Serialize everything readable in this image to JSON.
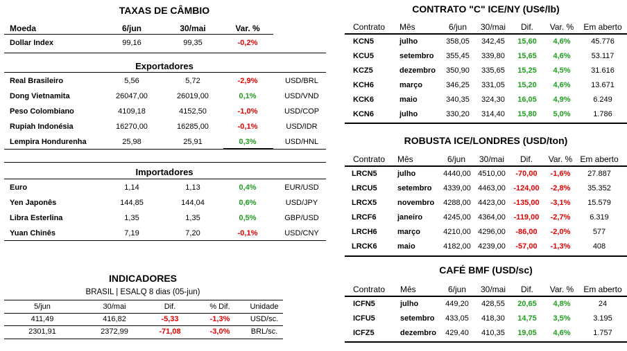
{
  "cambio": {
    "title": "TAXAS DE CÂMBIO",
    "headers": [
      "Moeda",
      "6/jun",
      "30/mai",
      "Var. %"
    ],
    "dollar_index": {
      "name": "Dollar Index",
      "v1": "99,16",
      "v2": "99,35",
      "var": "-0,2%"
    },
    "exportadores_title": "Exportadores",
    "exportadores": [
      {
        "name": "Real Brasileiro",
        "v1": "5,56",
        "v2": "5,72",
        "var": "-2,9%",
        "pair": "USD/BRL"
      },
      {
        "name": "Dong Vietnamita",
        "v1": "26047,00",
        "v2": "26019,00",
        "var": "0,1%",
        "pair": "USD/VND"
      },
      {
        "name": "Peso Colombiano",
        "v1": "4109,18",
        "v2": "4152,50",
        "var": "-1,0%",
        "pair": "USD/COP"
      },
      {
        "name": "Rupiah Indonésia",
        "v1": "16270,00",
        "v2": "16285,00",
        "var": "-0,1%",
        "pair": "USD/IDR"
      },
      {
        "name": "Lempira Hondurenha",
        "v1": "25,98",
        "v2": "25,91",
        "var": "0,3%",
        "pair": "USD/HNL"
      }
    ],
    "importadores_title": "Importadores",
    "importadores": [
      {
        "name": "Euro",
        "v1": "1,14",
        "v2": "1,13",
        "var": "0,4%",
        "pair": "EUR/USD"
      },
      {
        "name": "Yen Japonês",
        "v1": "144,85",
        "v2": "144,04",
        "var": "0,6%",
        "pair": "USD/JPY"
      },
      {
        "name": "Libra Esterlina",
        "v1": "1,35",
        "v2": "1,35",
        "var": "0,5%",
        "pair": "GBP/USD"
      },
      {
        "name": "Yuan Chinês",
        "v1": "7,19",
        "v2": "7,20",
        "var": "-0,1%",
        "pair": "USD/CNY"
      }
    ]
  },
  "indicadores": {
    "title": "INDICADORES",
    "subtitle": "BRASIL | ESALQ 8 dias (05-jun)",
    "headers": [
      "5/jun",
      "30/mai",
      "Dif.",
      "% Dif.",
      "Unidade"
    ],
    "rows": [
      {
        "v1": "411,49",
        "v2": "416,82",
        "dif": "-5,33",
        "pct": "-1,3%",
        "unit": "USD/sc."
      },
      {
        "v1": "2301,91",
        "v2": "2372,99",
        "dif": "-71,08",
        "pct": "-3,0%",
        "unit": "BRL/sc."
      }
    ]
  },
  "contrato_c": {
    "title": "CONTRATO \"C\" ICE/NY (US¢/lb)",
    "headers": [
      "Contrato",
      "Mês",
      "6/jun",
      "30/mai",
      "Dif.",
      "Var. %",
      "Em aberto"
    ],
    "rows": [
      {
        "c": "KCN5",
        "m": "julho",
        "v1": "358,05",
        "v2": "342,45",
        "dif": "15,60",
        "var": "4,6%",
        "oi": "45.776"
      },
      {
        "c": "KCU5",
        "m": "setembro",
        "v1": "355,45",
        "v2": "339,80",
        "dif": "15,65",
        "var": "4,6%",
        "oi": "53.117"
      },
      {
        "c": "KCZ5",
        "m": "dezembro",
        "v1": "350,90",
        "v2": "335,65",
        "dif": "15,25",
        "var": "4,5%",
        "oi": "31.616"
      },
      {
        "c": "KCH6",
        "m": "março",
        "v1": "346,25",
        "v2": "331,05",
        "dif": "15,20",
        "var": "4,6%",
        "oi": "13.671"
      },
      {
        "c": "KCK6",
        "m": "maio",
        "v1": "340,35",
        "v2": "324,30",
        "dif": "16,05",
        "var": "4,9%",
        "oi": "6.249"
      },
      {
        "c": "KCN6",
        "m": "julho",
        "v1": "330,20",
        "v2": "314,40",
        "dif": "15,80",
        "var": "5,0%",
        "oi": "1.786"
      }
    ]
  },
  "robusta": {
    "title": "ROBUSTA ICE/LONDRES (USD/ton)",
    "headers": [
      "Contrato",
      "Mês",
      "6/jun",
      "30/mai",
      "Dif.",
      "Var. %",
      "Em aberto"
    ],
    "rows": [
      {
        "c": "LRCN5",
        "m": "julho",
        "v1": "4440,00",
        "v2": "4510,00",
        "dif": "-70,00",
        "var": "-1,6%",
        "oi": "27.887"
      },
      {
        "c": "LRCU5",
        "m": "setembro",
        "v1": "4339,00",
        "v2": "4463,00",
        "dif": "-124,00",
        "var": "-2,8%",
        "oi": "35.352"
      },
      {
        "c": "LRCX5",
        "m": "novembro",
        "v1": "4288,00",
        "v2": "4423,00",
        "dif": "-135,00",
        "var": "-3,1%",
        "oi": "15.579"
      },
      {
        "c": "LRCF6",
        "m": "janeiro",
        "v1": "4245,00",
        "v2": "4364,00",
        "dif": "-119,00",
        "var": "-2,7%",
        "oi": "6.319"
      },
      {
        "c": "LRCH6",
        "m": "março",
        "v1": "4210,00",
        "v2": "4296,00",
        "dif": "-86,00",
        "var": "-2,0%",
        "oi": "577"
      },
      {
        "c": "LRCK6",
        "m": "maio",
        "v1": "4182,00",
        "v2": "4239,00",
        "dif": "-57,00",
        "var": "-1,3%",
        "oi": "408"
      }
    ]
  },
  "cafe_bmf": {
    "title": "CAFÉ BMF (USD/sc)",
    "headers": [
      "Contrato",
      "Mês",
      "6/jun",
      "30/mai",
      "Dif.",
      "Var. %",
      "Em aberto"
    ],
    "rows": [
      {
        "c": "ICFN5",
        "m": "julho",
        "v1": "449,20",
        "v2": "428,55",
        "dif": "20,65",
        "var": "4,8%",
        "oi": "24"
      },
      {
        "c": "ICFU5",
        "m": "setembro",
        "v1": "433,05",
        "v2": "418,30",
        "dif": "14,75",
        "var": "3,5%",
        "oi": "3.195"
      },
      {
        "c": "ICFZ5",
        "m": "dezembro",
        "v1": "429,40",
        "v2": "410,35",
        "dif": "19,05",
        "var": "4,6%",
        "oi": "1.757"
      }
    ]
  }
}
